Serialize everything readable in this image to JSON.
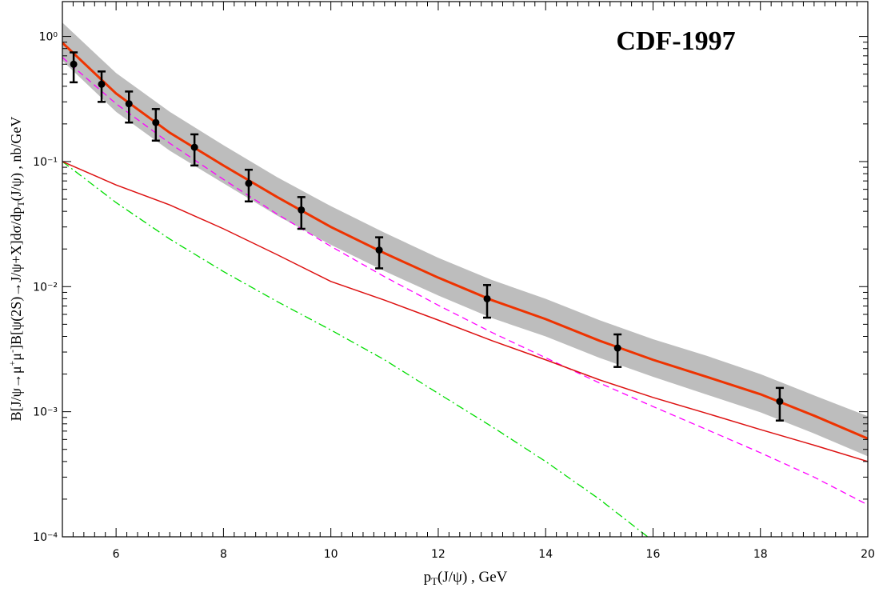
{
  "chart_data": {
    "type": "line",
    "annotation": "CDF-1997",
    "x_label": [
      "p",
      "T",
      "(J/ψ) , GeV"
    ],
    "y_label": [
      "B[J/ψ→μ",
      "+",
      "μ",
      "-",
      "]B[ψ(2S)→J/ψ+X]dσ/dp",
      "T",
      "(J/ψ) , nb/GeV"
    ],
    "xlim": [
      5,
      20
    ],
    "ylim": [
      0.0001,
      1.9
    ],
    "log_y": true,
    "xticks": [
      6,
      8,
      10,
      12,
      14,
      16,
      18,
      20
    ],
    "yticks": [
      {
        "value": 0.0001,
        "label": "10⁻⁴"
      },
      {
        "value": 0.001,
        "label": "10⁻³"
      },
      {
        "value": 0.01,
        "label": "10⁻²"
      },
      {
        "value": 0.1,
        "label": "10⁻¹"
      },
      {
        "value": 1,
        "label": "10⁰"
      }
    ],
    "band": {
      "color": "#bdbdbd",
      "x": [
        5,
        6,
        7,
        8,
        9,
        10,
        11,
        12,
        13,
        14,
        15,
        16,
        17,
        18,
        19,
        20
      ],
      "high": [
        1.29,
        0.51,
        0.25,
        0.135,
        0.075,
        0.044,
        0.027,
        0.017,
        0.0113,
        0.008,
        0.0054,
        0.0038,
        0.0028,
        0.002,
        0.00135,
        0.00092
      ],
      "low": [
        0.64,
        0.25,
        0.122,
        0.067,
        0.037,
        0.0216,
        0.0133,
        0.0085,
        0.0056,
        0.004,
        0.0027,
        0.0019,
        0.00137,
        0.00099,
        0.00067,
        0.00044
      ]
    },
    "series": [
      {
        "color": "#00dd00",
        "dash": "10 4 2 4",
        "width": 1.3,
        "x": [
          5,
          6,
          7,
          8,
          9,
          10,
          11,
          12,
          13,
          14,
          15,
          15.9
        ],
        "values": [
          0.1,
          0.047,
          0.024,
          0.0132,
          0.0076,
          0.0045,
          0.0026,
          0.0014,
          0.00076,
          0.0004,
          0.0002,
          0.0001
        ]
      },
      {
        "color": "#ff00ff",
        "dash": "8 5",
        "width": 1.3,
        "x": [
          5,
          6,
          7,
          8,
          9,
          10,
          11,
          12,
          13,
          14,
          15,
          16,
          17,
          18,
          19,
          20
        ],
        "values": [
          0.68,
          0.29,
          0.14,
          0.072,
          0.038,
          0.021,
          0.012,
          0.0071,
          0.0043,
          0.0027,
          0.0017,
          0.0011,
          0.00072,
          0.00047,
          0.0003,
          0.00018
        ]
      },
      {
        "color": "#dd1111",
        "dash": "none",
        "width": 1.5,
        "x": [
          5,
          6,
          7,
          8,
          9,
          10,
          11,
          12,
          13,
          14,
          15,
          16,
          17,
          18,
          19,
          20
        ],
        "values": [
          0.1,
          0.065,
          0.045,
          0.029,
          0.018,
          0.011,
          0.0078,
          0.0054,
          0.0037,
          0.0026,
          0.0018,
          0.0013,
          0.00097,
          0.00072,
          0.00054,
          0.0004
        ]
      },
      {
        "color": "#ee3300",
        "dash": "none",
        "width": 3,
        "x": [
          5,
          6,
          7,
          8,
          9,
          10,
          11,
          12,
          13,
          14,
          15,
          16,
          17,
          18,
          19,
          20
        ],
        "values": [
          0.89,
          0.35,
          0.17,
          0.093,
          0.052,
          0.03,
          0.0185,
          0.0118,
          0.0078,
          0.0055,
          0.0037,
          0.0026,
          0.0019,
          0.00138,
          0.00093,
          0.00061
        ]
      }
    ],
    "points": {
      "color": "#000000",
      "x": [
        5.21,
        5.73,
        6.24,
        6.74,
        7.46,
        8.47,
        9.45,
        10.9,
        12.91,
        15.34,
        18.36
      ],
      "values": [
        0.6,
        0.415,
        0.29,
        0.205,
        0.13,
        0.067,
        0.041,
        0.0196,
        0.008,
        0.00323,
        0.00121
      ],
      "low": [
        0.43,
        0.3,
        0.205,
        0.147,
        0.093,
        0.048,
        0.029,
        0.014,
        0.00565,
        0.00228,
        0.00085
      ],
      "high": [
        0.746,
        0.525,
        0.363,
        0.263,
        0.165,
        0.086,
        0.052,
        0.0248,
        0.0103,
        0.00415,
        0.00155
      ]
    }
  }
}
